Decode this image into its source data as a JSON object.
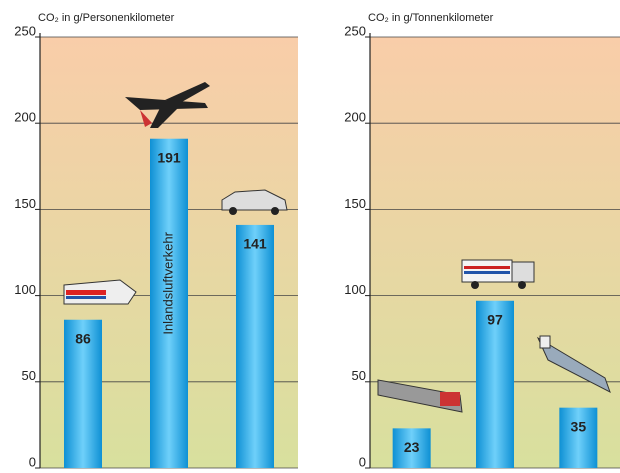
{
  "chart_data": [
    {
      "type": "bar",
      "title": "CO₂ in g/Personenkilometer",
      "categories": [
        null,
        null,
        null
      ],
      "values": [
        86,
        191,
        141
      ],
      "annotation": "Inlandsluftverkehr",
      "color": "#1aa3e3",
      "ylim": [
        0,
        250
      ],
      "yticks": [
        0,
        50,
        100,
        150,
        200,
        250
      ],
      "grid": true
    },
    {
      "type": "bar",
      "title": "CO₂ in g/Tonnenkilometer",
      "categories": [
        null,
        null,
        null
      ],
      "values": [
        23,
        97,
        35
      ],
      "color": "#1aa3e3",
      "ylim": [
        0,
        250
      ],
      "yticks": [
        0,
        50,
        100,
        150,
        200,
        250
      ],
      "grid": true
    }
  ]
}
